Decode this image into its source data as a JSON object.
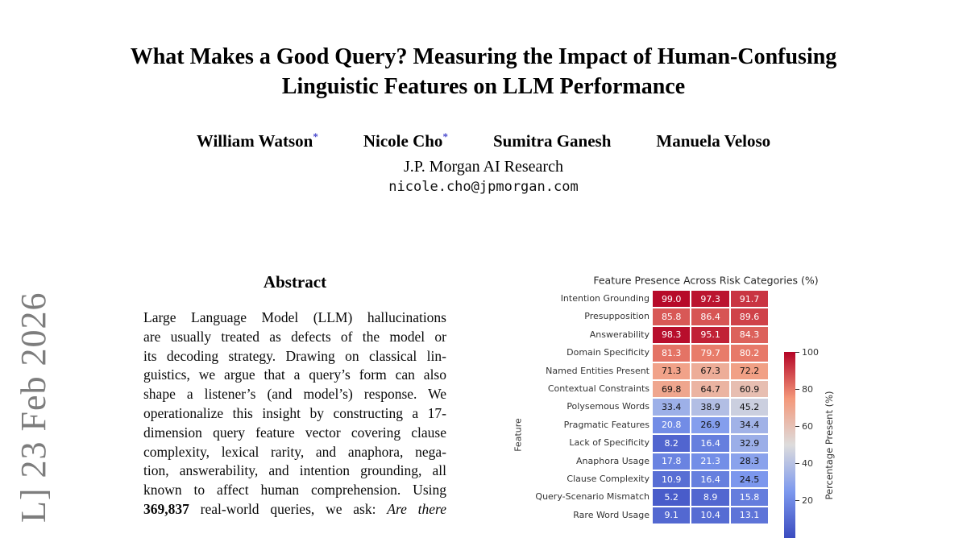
{
  "page": {
    "arxiv_stamp_visible_text": "L] 23 Feb 2026",
    "stamp_color": "#7d7d7d"
  },
  "paper": {
    "title_line1": "What Makes a Good Query? Measuring the Impact of Human-Confusing",
    "title_line2": "Linguistic Features on LLM Performance",
    "authors": [
      {
        "name": "William Watson",
        "mark": "*"
      },
      {
        "name": "Nicole Cho",
        "mark": "*"
      },
      {
        "name": "Sumitra Ganesh",
        "mark": ""
      },
      {
        "name": "Manuela Veloso",
        "mark": ""
      }
    ],
    "asterisk_color": "#4646cc",
    "affiliation": "J.P. Morgan AI Research",
    "email": "nicole.cho@jpmorgan.com"
  },
  "abstract": {
    "heading": "Abstract",
    "lines": [
      [
        {
          "t": "Large Language Model (LLM) hallucinations"
        }
      ],
      [
        {
          "t": "are usually treated as defects of the model or"
        }
      ],
      [
        {
          "t": "its decoding strategy. Drawing on classical lin-"
        }
      ],
      [
        {
          "t": "guistics, we argue that a query’s form can also"
        }
      ],
      [
        {
          "t": "shape a listener’s (and model’s) response. We"
        }
      ],
      [
        {
          "t": "operationalize this insight by constructing a 17-"
        }
      ],
      [
        {
          "t": "dimension query feature vector covering clause"
        }
      ],
      [
        {
          "t": "complexity, lexical rarity, and anaphora, nega-"
        }
      ],
      [
        {
          "t": "tion, answerability, and intention grounding, all"
        }
      ],
      [
        {
          "t": "known to affect human comprehension. Using"
        }
      ],
      [
        {
          "t": "369,837",
          "b": true
        },
        {
          "t": " real-world queries, we ask: "
        },
        {
          "t": "Are there",
          "i": true
        }
      ]
    ]
  },
  "chart_data": {
    "type": "heatmap",
    "title": "Feature Presence Across Risk Categories (%)",
    "ylabel": "Feature",
    "colorbar_label": "Percentage Present (%)",
    "colorbar_ticks": [
      100,
      80,
      60,
      40,
      20
    ],
    "colormap": "coolwarm",
    "vmin": 0,
    "vmax": 100,
    "n_columns": 3,
    "x_tick_labels_visible": false,
    "rows": [
      {
        "label": "Intention Grounding",
        "values": [
          99.0,
          97.3,
          91.7
        ]
      },
      {
        "label": "Presupposition",
        "values": [
          85.8,
          86.4,
          89.6
        ]
      },
      {
        "label": "Answerability",
        "values": [
          98.3,
          95.1,
          84.3
        ]
      },
      {
        "label": "Domain Specificity",
        "values": [
          81.3,
          79.7,
          80.2
        ]
      },
      {
        "label": "Named Entities Present",
        "values": [
          71.3,
          67.3,
          72.2
        ]
      },
      {
        "label": "Contextual Constraints",
        "values": [
          69.8,
          64.7,
          60.9
        ]
      },
      {
        "label": "Polysemous Words",
        "values": [
          33.4,
          38.9,
          45.2
        ]
      },
      {
        "label": "Pragmatic Features",
        "values": [
          20.8,
          26.9,
          34.4
        ]
      },
      {
        "label": "Lack of Specificity",
        "values": [
          8.2,
          16.4,
          32.9
        ]
      },
      {
        "label": "Anaphora Usage",
        "values": [
          17.8,
          21.3,
          28.3
        ]
      },
      {
        "label": "Clause Complexity",
        "values": [
          10.9,
          16.4,
          24.5
        ]
      },
      {
        "label": "Query-Scenario Mismatch",
        "values": [
          5.2,
          8.9,
          15.8
        ]
      },
      {
        "label": "Rare Word Usage",
        "values": [
          9.1,
          10.4,
          13.1
        ]
      }
    ]
  }
}
